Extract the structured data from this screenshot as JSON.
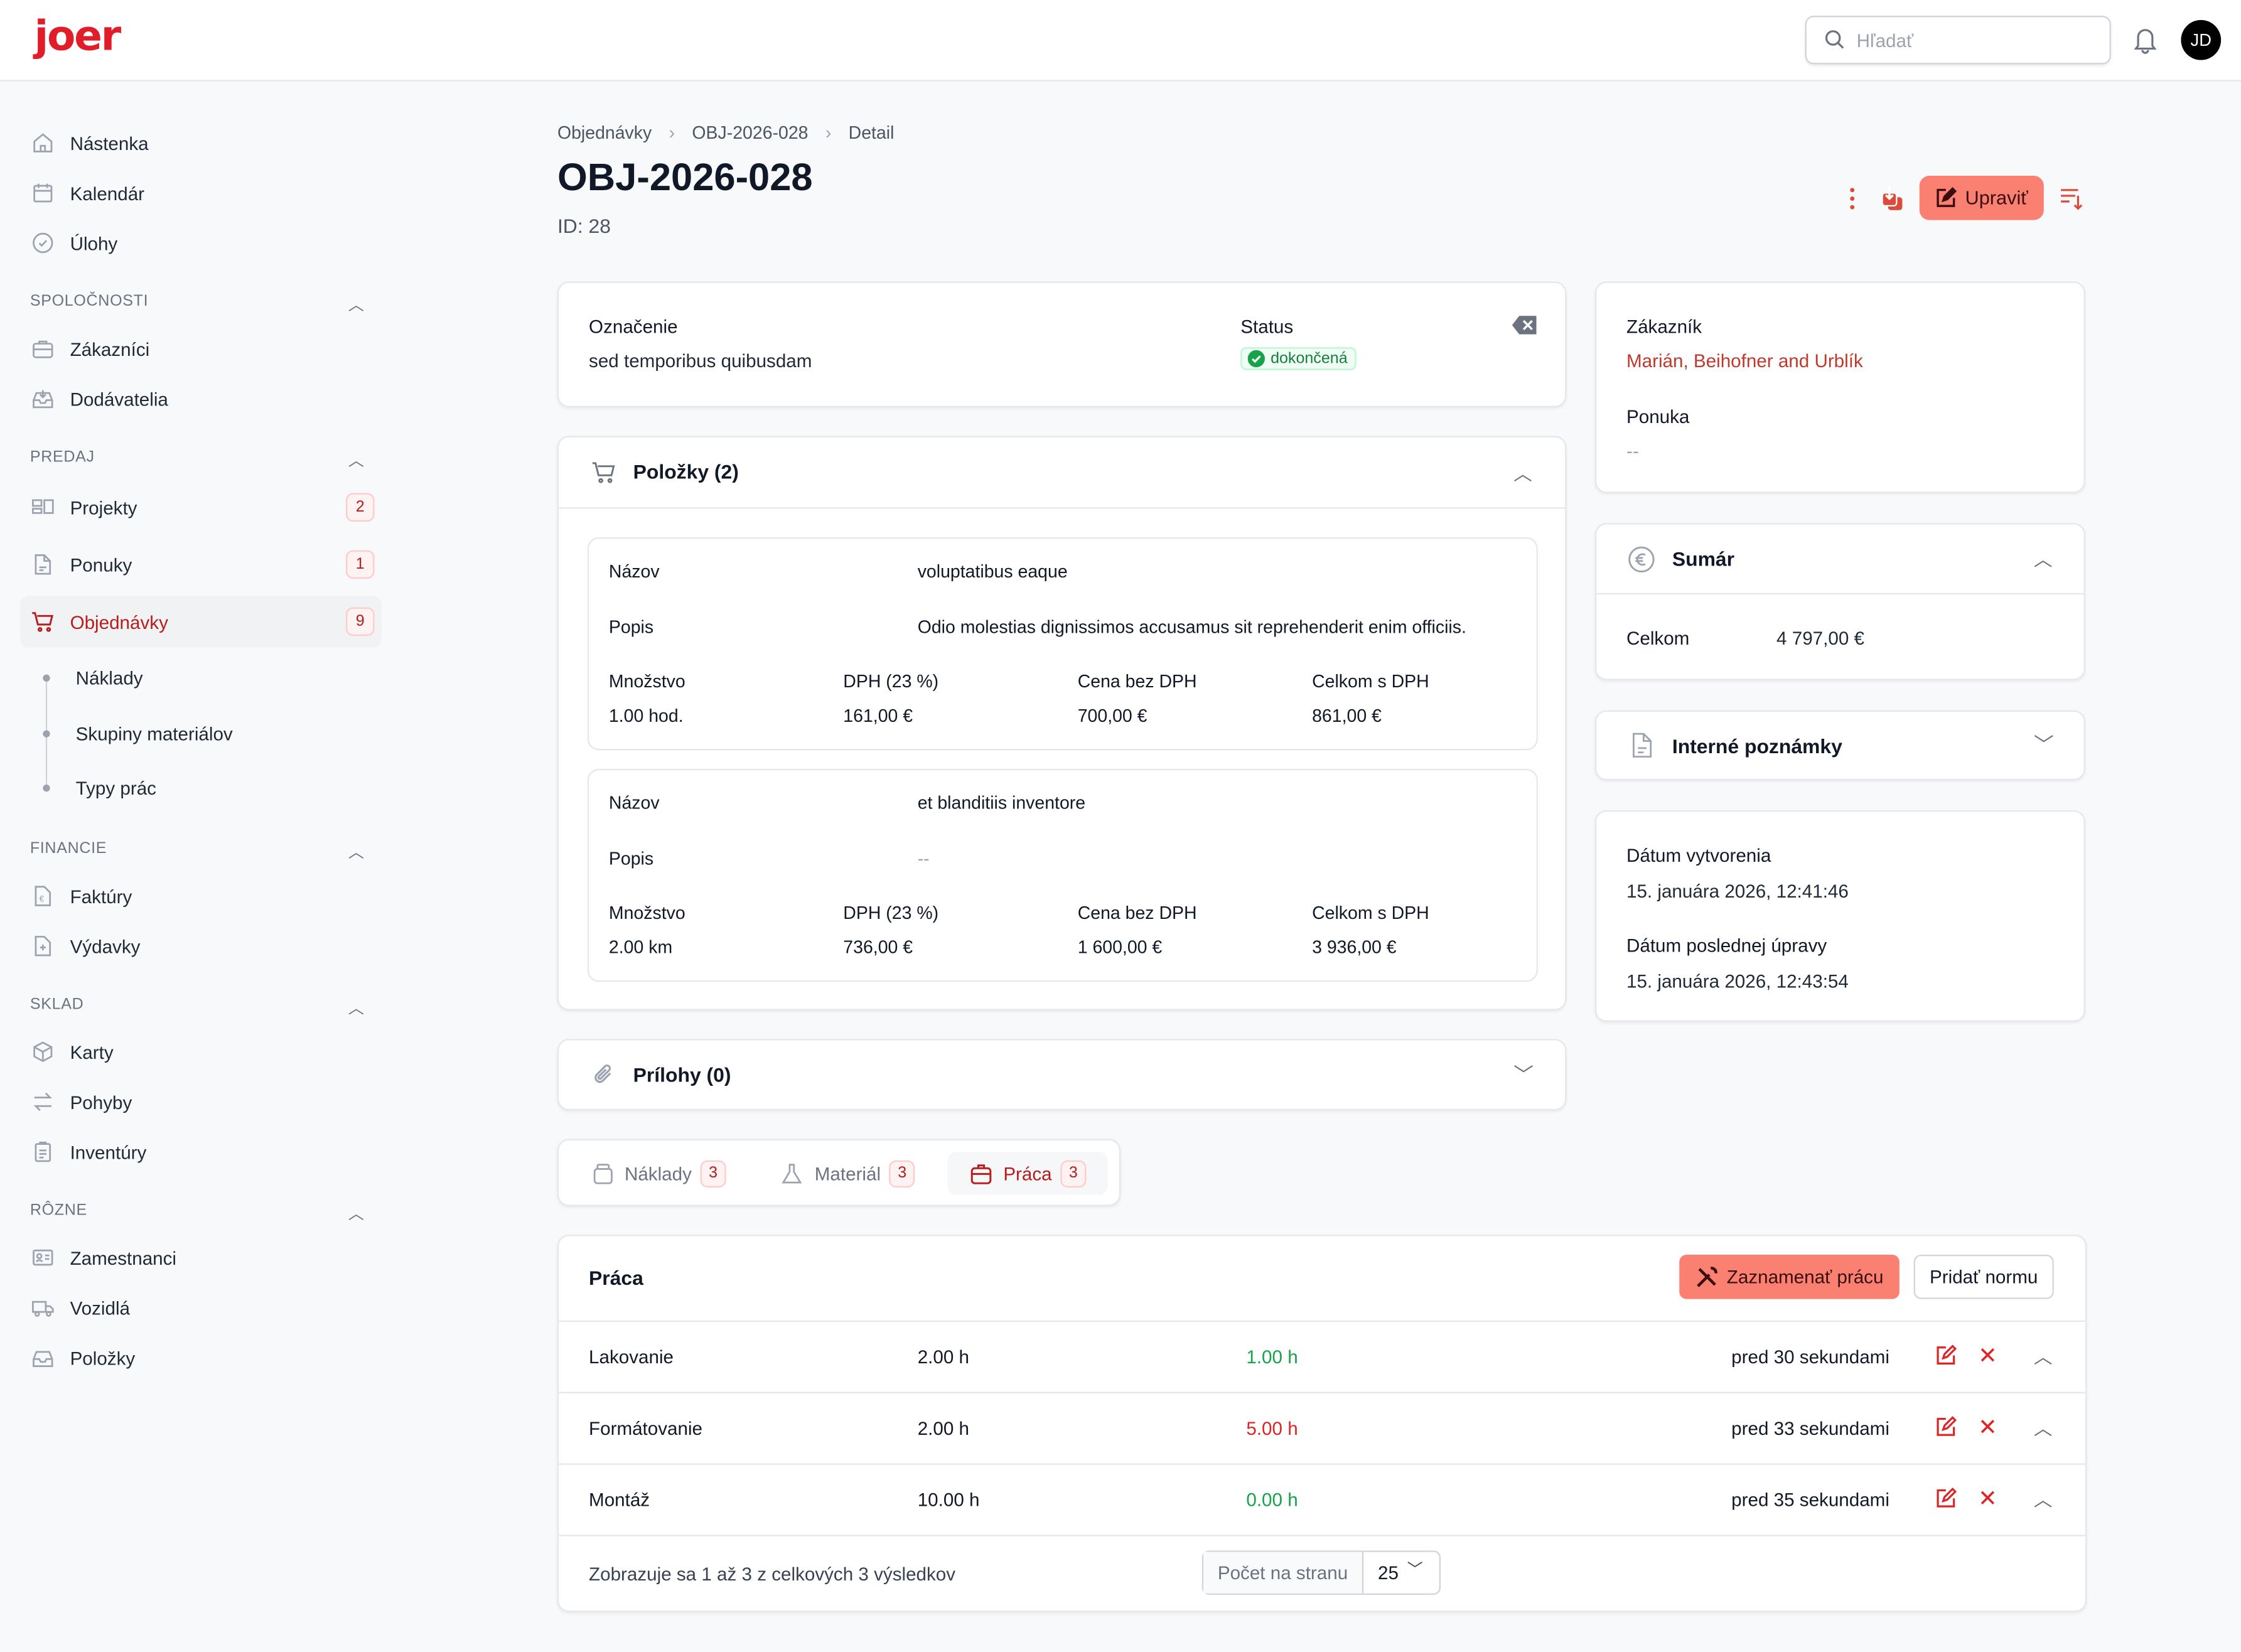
{
  "header": {
    "logo": "joer",
    "search_placeholder": "Hľadať",
    "avatar_initials": "JD"
  },
  "sidebar": {
    "top": [
      {
        "label": "Nástenka",
        "icon": "home-icon"
      },
      {
        "label": "Kalendár",
        "icon": "calendar-icon"
      },
      {
        "label": "Úlohy",
        "icon": "check-circle-icon"
      }
    ],
    "sections": {
      "spolocnosti": {
        "title": "SPOLOČNOSTI",
        "items": [
          {
            "label": "Zákazníci"
          },
          {
            "label": "Dodávatelia"
          }
        ]
      },
      "predaj": {
        "title": "PREDAJ",
        "items": [
          {
            "label": "Projekty",
            "badge": "2"
          },
          {
            "label": "Ponuky",
            "badge": "1"
          },
          {
            "label": "Objednávky",
            "badge": "9",
            "active": true
          }
        ],
        "subitems": [
          "Náklady",
          "Skupiny materiálov",
          "Typy prác"
        ]
      },
      "financie": {
        "title": "FINANCIE",
        "items": [
          {
            "label": "Faktúry"
          },
          {
            "label": "Výdavky"
          }
        ]
      },
      "sklad": {
        "title": "SKLAD",
        "items": [
          {
            "label": "Karty"
          },
          {
            "label": "Pohyby"
          },
          {
            "label": "Inventúry"
          }
        ]
      },
      "rozne": {
        "title": "RÔZNE",
        "items": [
          {
            "label": "Zamestnanci"
          },
          {
            "label": "Vozidlá"
          },
          {
            "label": "Položky"
          }
        ]
      }
    }
  },
  "breadcrumb": [
    "Objednávky",
    "OBJ-2026-028",
    "Detail"
  ],
  "page": {
    "title": "OBJ-2026-028",
    "id": "ID: 28",
    "edit_label": "Upraviť"
  },
  "info": {
    "oznacenie_label": "Označenie",
    "oznacenie": "sed temporibus quibusdam",
    "status_label": "Status",
    "status": "dokončená"
  },
  "customer": {
    "zakaznik_label": "Zákazník",
    "zakaznik": "Marián, Beihofner and Urblík",
    "ponuka_label": "Ponuka",
    "ponuka": "--"
  },
  "polozky": {
    "title": "Položky (2)",
    "labels": {
      "nazov": "Názov",
      "popis": "Popis",
      "mnozstvo": "Množstvo",
      "dph": "DPH (23 %)",
      "cena": "Cena bez DPH",
      "celkom": "Celkom s DPH"
    },
    "items": [
      {
        "nazov": "voluptatibus eaque",
        "popis": "Odio molestias dignissimos accusamus sit reprehenderit enim officiis.",
        "mnozstvo": "1.00 hod.",
        "dph": "161,00 €",
        "cena": "700,00 €",
        "celkom": "861,00 €"
      },
      {
        "nazov": "et blanditiis inventore",
        "popis": "--",
        "mnozstvo": "2.00 km",
        "dph": "736,00 €",
        "cena": "1 600,00 €",
        "celkom": "3 936,00 €"
      }
    ]
  },
  "prilohy": {
    "title": "Prílohy (0)"
  },
  "sumar": {
    "title": "Sumár",
    "celkom_label": "Celkom",
    "celkom": "4 797,00 €"
  },
  "notes": {
    "title": "Interné poznámky"
  },
  "dates": {
    "created_label": "Dátum vytvorenia",
    "created": "15. januára 2026, 12:41:46",
    "updated_label": "Dátum poslednej úpravy",
    "updated": "15. januára 2026, 12:43:54"
  },
  "tabs": [
    {
      "label": "Náklady",
      "count": "3"
    },
    {
      "label": "Materiál",
      "count": "3"
    },
    {
      "label": "Práca",
      "count": "3",
      "active": true
    }
  ],
  "praca": {
    "title": "Práca",
    "record_label": "Zaznamenať prácu",
    "add_norm_label": "Pridať normu",
    "rows": [
      {
        "name": "Lakovanie",
        "planned": "2.00 h",
        "actual": "1.00 h",
        "actual_color": "#16a34a",
        "time": "pred 30 sekundami"
      },
      {
        "name": "Formátovanie",
        "planned": "2.00 h",
        "actual": "5.00 h",
        "actual_color": "#dc2626",
        "time": "pred 33 sekundami"
      },
      {
        "name": "Montáž",
        "planned": "10.00 h",
        "actual": "0.00 h",
        "actual_color": "#16a34a",
        "time": "pred 35 sekundami"
      }
    ],
    "footer": "Zobrazuje sa 1 až 3 z celkových 3 výsledkov",
    "per_page_label": "Počet na stranu",
    "per_page": "25"
  },
  "colors": {
    "accent": "#dc2626",
    "button": "#fa8072"
  }
}
